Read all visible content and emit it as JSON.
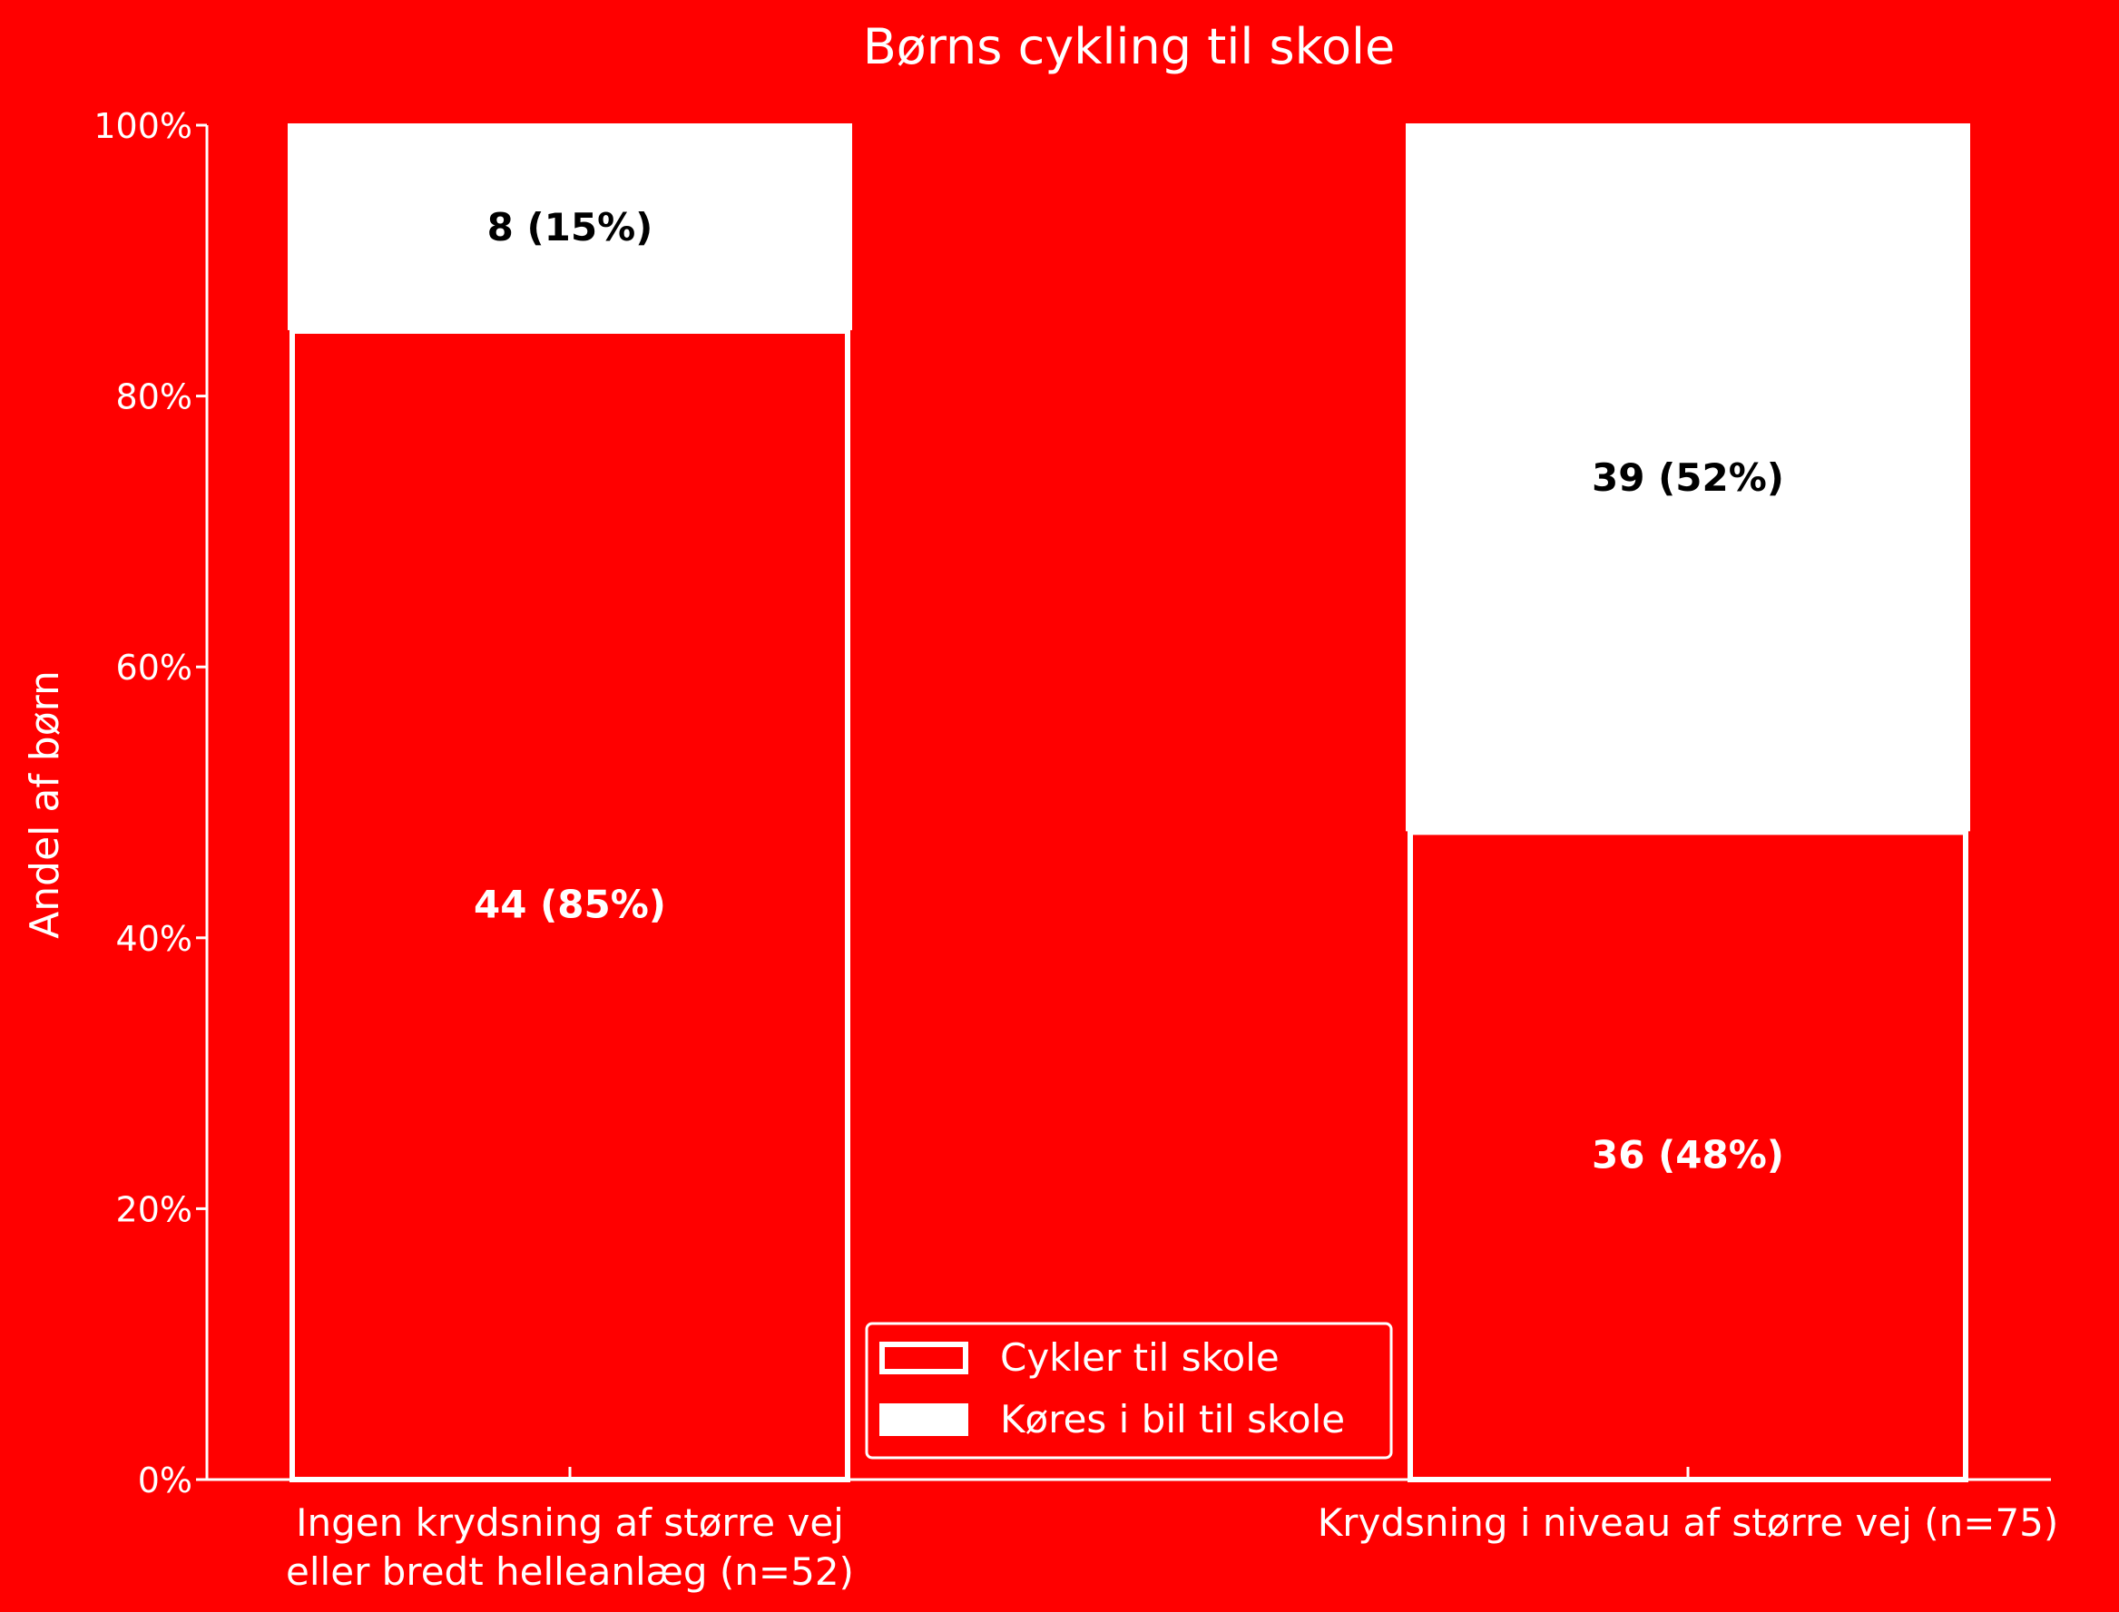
{
  "chart_data": {
    "type": "bar",
    "stacked": true,
    "normalized": true,
    "title": "Børns cykling til skole",
    "xlabel": "",
    "ylabel": "Andel af børn",
    "ylim": [
      0,
      100
    ],
    "y_ticks": [
      "0%",
      "20%",
      "40%",
      "60%",
      "80%",
      "100%"
    ],
    "y_tick_values": [
      0,
      20,
      40,
      60,
      80,
      100
    ],
    "categories": [
      [
        "Ingen krydsning af større vej",
        "eller bredt helleanlæg (n=52)"
      ],
      [
        "Krydsning i niveau af større vej (n=75)"
      ]
    ],
    "series": [
      {
        "name": "Cykler til skole",
        "style": "outline",
        "values": [
          85,
          48
        ],
        "counts": [
          44,
          36
        ],
        "labels": [
          "44 (85%)",
          "36 (48%)"
        ]
      },
      {
        "name": "Køres i bil til skole",
        "style": "filled",
        "values": [
          15,
          52
        ],
        "counts": [
          8,
          39
        ],
        "labels": [
          "8 (15%)",
          "39 (52%)"
        ]
      }
    ],
    "legend_position": "lower-center",
    "grid": false,
    "colors": {
      "background": "#ff0000",
      "foreground": "#ffffff",
      "filled_label": "#000000",
      "outline_label": "#ffffff"
    }
  }
}
